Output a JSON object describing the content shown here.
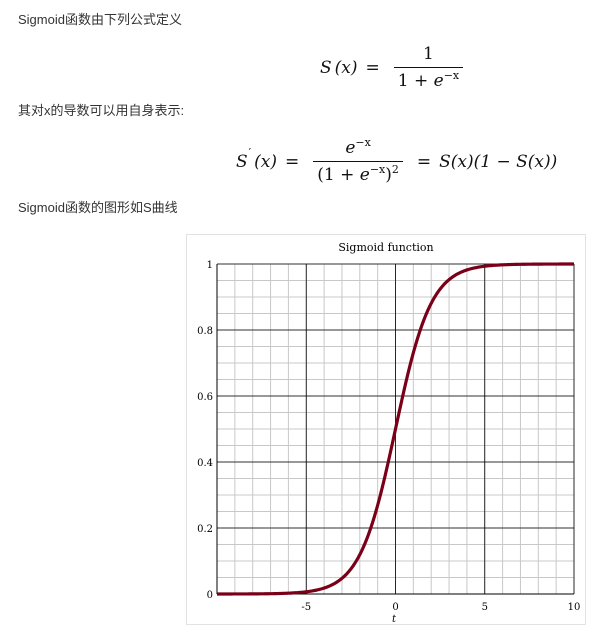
{
  "text": {
    "para1": "Sigmoid函数由下列公式定义",
    "para2": "其对x的导数可以用自身表示:",
    "para3": "Sigmoid函数的图形如S曲线"
  },
  "formula1": {
    "lhs": "S",
    "lhs_arg": "(x)",
    "eq": "=",
    "num": "1",
    "den_a": "1 + ",
    "den_e": "e",
    "den_exp": "−x"
  },
  "formula2": {
    "lhs": "S",
    "prime": "′",
    "lhs_arg": "(x)",
    "eq1": "=",
    "num_e": "e",
    "num_exp": "−x",
    "den_open": "(1 + ",
    "den_e": "e",
    "den_exp": "−x",
    "den_close": ")",
    "den_pow": "2",
    "eq2": "=",
    "rhs": "S(x)(1 − S(x))"
  },
  "chart_data": {
    "type": "line",
    "title": "Sigmoid function",
    "xlabel": "t",
    "ylabel": "",
    "xlim": [
      -10,
      10
    ],
    "ylim": [
      0,
      1
    ],
    "x_ticks": [
      "-5",
      "0",
      "5",
      "10"
    ],
    "y_ticks": [
      "0",
      "0.2",
      "0.4",
      "0.6",
      "0.8",
      "1"
    ],
    "grid": true,
    "series": [
      {
        "function": "1/(1+e^-t)",
        "color": "#7a0019",
        "x": [
          -10,
          -8,
          -6,
          -5,
          -4,
          -3,
          -2,
          -1,
          0,
          1,
          2,
          3,
          4,
          5,
          6,
          8,
          10
        ],
        "y": [
          4.54e-05,
          0.000335,
          0.00247,
          0.00669,
          0.018,
          0.047,
          0.119,
          0.269,
          0.5,
          0.731,
          0.881,
          0.953,
          0.982,
          0.993,
          0.9975,
          0.99966,
          0.99995
        ]
      }
    ]
  }
}
